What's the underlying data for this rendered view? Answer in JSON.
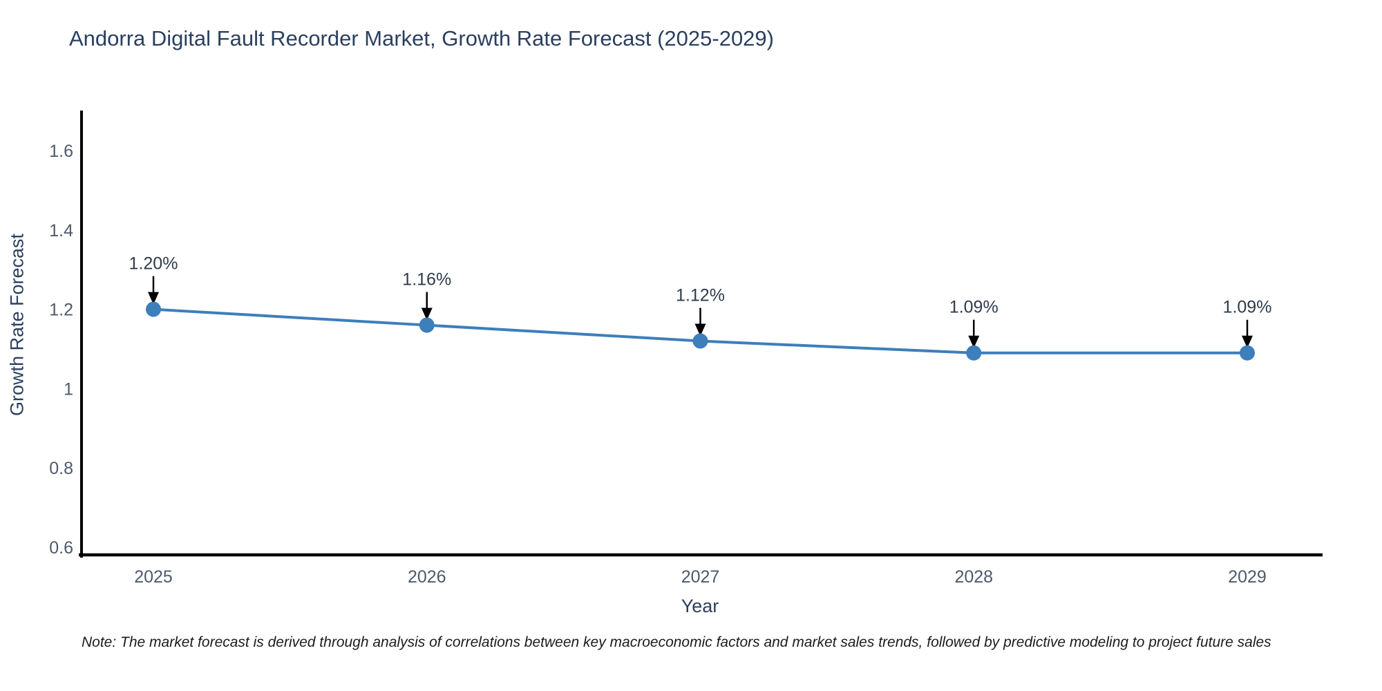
{
  "title": "Andorra Digital Fault Recorder Market, Growth Rate Forecast (2025-2029)",
  "note": "Note: The market forecast is derived through analysis of correlations between key macroeconomic factors and market sales trends, followed by predictive modeling to project future sales",
  "chart_data": {
    "type": "line",
    "title": "Andorra Digital Fault Recorder Market, Growth Rate Forecast (2025-2029)",
    "x": [
      "2025",
      "2026",
      "2027",
      "2028",
      "2029"
    ],
    "values": [
      1.2,
      1.16,
      1.12,
      1.09,
      1.09
    ],
    "point_labels": [
      "1.20%",
      "1.16%",
      "1.12%",
      "1.09%",
      "1.09%"
    ],
    "xlabel": "Year",
    "ylabel": "Growth Rate Forecast",
    "yticks": [
      0.6,
      0.8,
      1,
      1.2,
      1.4,
      1.6
    ],
    "ylim": [
      0.58,
      1.72
    ],
    "grid": false,
    "legend": "none",
    "annotations_have_arrows": true,
    "colors": {
      "line": "#3d7ebc",
      "marker": "#3d7ebc",
      "axis": "#000000",
      "title": "#2a3f5f",
      "axis_label": "#2a3f5f",
      "tick_label": "#4d5a6a",
      "annotation_text": "#2f3b4c",
      "arrow": "#000000",
      "note": "#1c1c1c",
      "background": "#ffffff"
    }
  }
}
